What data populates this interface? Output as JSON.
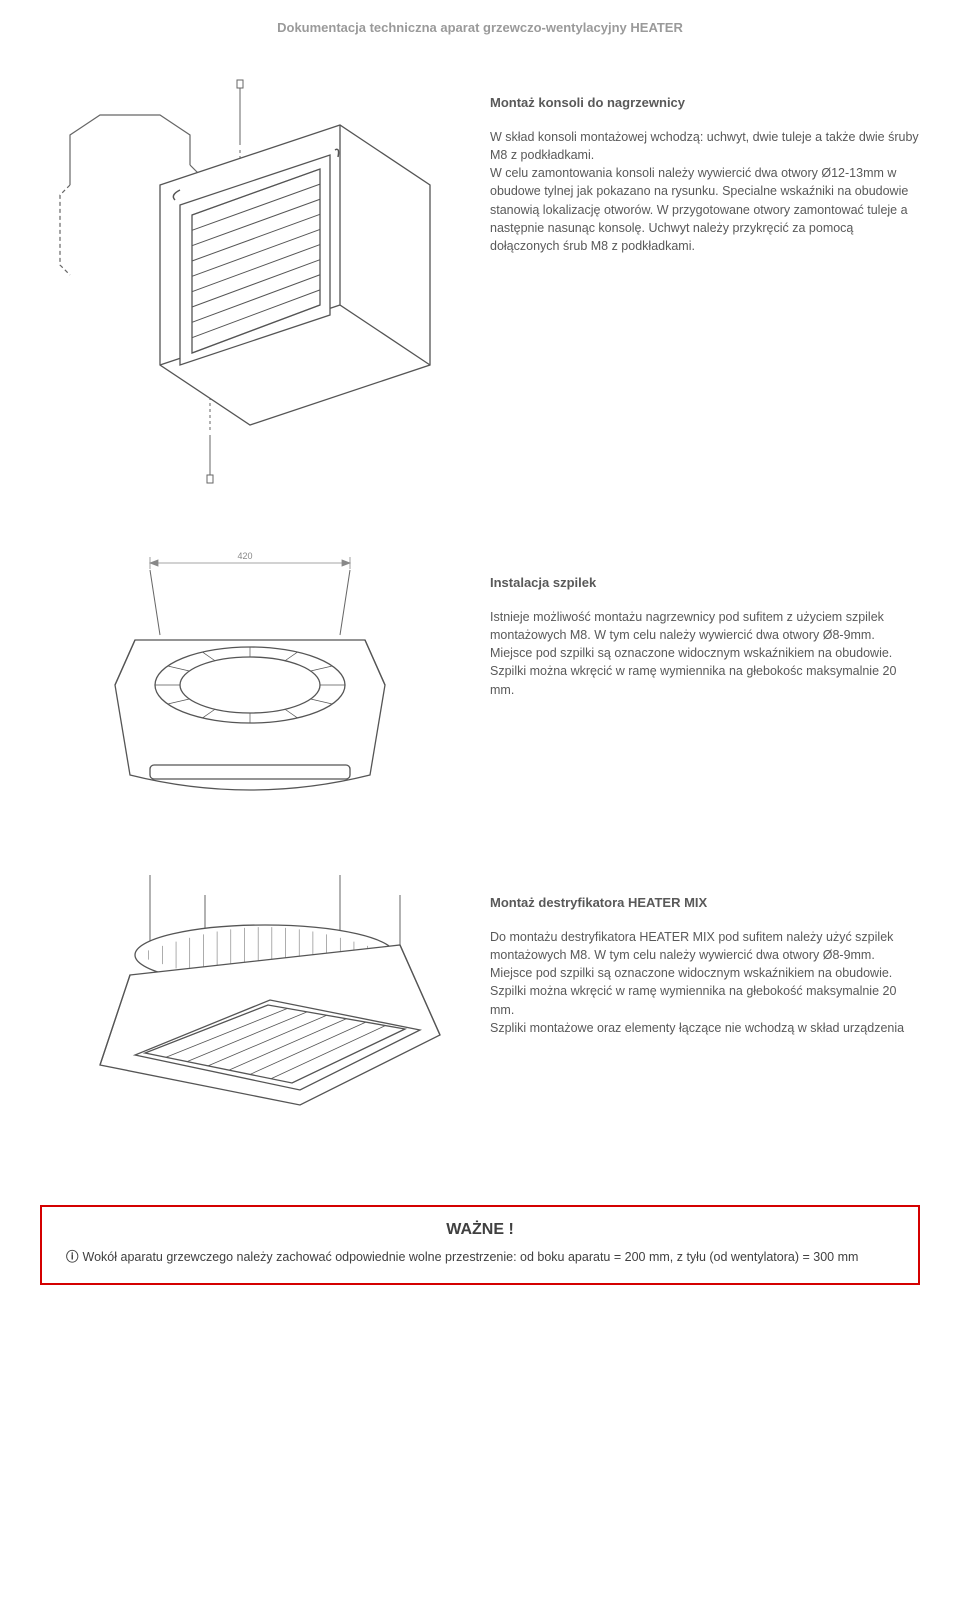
{
  "header": {
    "title": "Dokumentacja techniczna aparat grzewczo-wentylacyjny HEATER"
  },
  "sections": [
    {
      "title": "Montaż konsoli do nagrzewnicy",
      "body": "W skład konsoli montażowej wchodzą: uchwyt, dwie tuleje a także dwie śruby M8 z podkładkami.\nW celu zamontowania konsoli należy wywiercić dwa otwory Ø12-13mm  w obudowe tylnej jak pokazano na rysunku. Specialne wskaźniki na obudowie stanowią lokalizację otworów. W przygotowane otwory zamontować tuleje a następnie nasunąc konsolę. Uchwyt należy przykręcić za pomocą dołączonych śrub M8 z podkładkami."
    },
    {
      "title": "Instalacja szpilek",
      "body": "Istnieje możliwość montażu nagrzewnicy pod sufitem z użyciem szpilek montażowych M8. W tym celu należy wywiercić dwa otwory Ø8-9mm. Miejsce pod szpilki są oznaczone widocznym wskaźnikiem na obudowie. Szpilki można wkręcić w ramę wymiennika na głebokośc maksymalnie 20 mm."
    },
    {
      "title": "Montaż destryfikatora HEATER MIX",
      "body": "Do montażu destryfikatora HEATER MIX pod sufitem należy użyć szpilek montażowych M8. W tym celu należy wywiercić dwa otwory Ø8-9mm. Miejsce pod szpilki są oznaczone widocznym wskaźnikiem na obudowie. Szpilki można wkręcić w ramę wymiennika na głebokość maksymalnie 20 mm.\nSzpliki montażowe oraz elementy łączące nie wchodzą w skład urządzenia"
    }
  ],
  "warning": {
    "title": "WAŻNE !",
    "icon": "ⓘ",
    "body": "Wokół aparatu grzewczego należy zachować odpowiednie wolne przestrzenie:  od boku aparatu = 200 mm, z tyłu (od wentylatora) = 300 mm"
  },
  "diagram": {
    "dimension_label": "420",
    "stroke": "#666666",
    "dash": "#999999",
    "fill": "#ffffff",
    "louver_count": 10
  }
}
